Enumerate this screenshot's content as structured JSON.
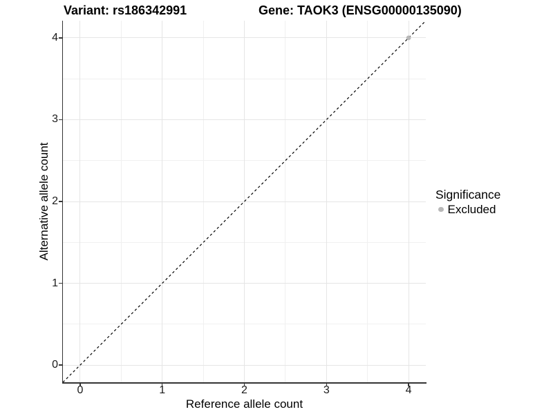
{
  "chart_data": {
    "type": "scatter",
    "title_left": "Variant: rs186342991",
    "title_right": "Gene: TAOK3 (ENSG00000135090)",
    "xlabel": "Reference allele count",
    "ylabel": "Alternative allele count",
    "xlim": [
      -0.21,
      4.21
    ],
    "ylim": [
      -0.21,
      4.21
    ],
    "x_ticks": [
      0,
      1,
      2,
      3,
      4
    ],
    "y_ticks": [
      0,
      1,
      2,
      3,
      4
    ],
    "x_minor_ticks": [
      0.5,
      1.5,
      2.5,
      3.5
    ],
    "y_minor_ticks": [
      0.5,
      1.5,
      2.5,
      3.5
    ],
    "grid": true,
    "grid_major_color": "#e5e5e5",
    "grid_minor_color": "#f0f0f0",
    "background_color": "#ffffff",
    "axis_line_color": "#333333",
    "identity_line": {
      "style": "dashed",
      "color": "#000000",
      "from": -0.21,
      "to": 4.21
    },
    "series": [
      {
        "name": "Excluded",
        "color": "#b8b8b8",
        "points": [
          {
            "x": 4,
            "y": 4
          }
        ]
      }
    ],
    "legend": {
      "title": "Significance",
      "position": "right",
      "items": [
        {
          "label": "Excluded",
          "color": "#b8b8b8"
        }
      ]
    }
  }
}
